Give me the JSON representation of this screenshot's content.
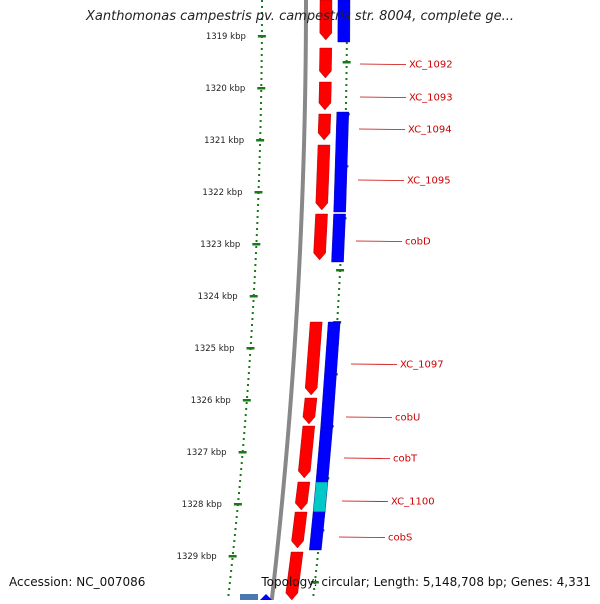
{
  "title": "Xanthomonas campestris pv. campestris str. 8004, complete ge...",
  "footer": {
    "accession": "Accession: NC_007086",
    "summary": "Topology: circular; Length: 5,148,708 bp; Genes: 4,331"
  },
  "colors": {
    "forward_gene": "#ff0000",
    "reverse_gene": "#0000ff",
    "highlight_gene": "#00c8c8",
    "backbone": "#888888",
    "tick": "#1a7a1a",
    "label": "#cc0000"
  },
  "ticks": [
    {
      "label": "1319 kbp"
    },
    {
      "label": "1320 kbp"
    },
    {
      "label": "1321 kbp"
    },
    {
      "label": "1322 kbp"
    },
    {
      "label": "1323 kbp"
    },
    {
      "label": "1324 kbp"
    },
    {
      "label": "1325 kbp"
    },
    {
      "label": "1326 kbp"
    },
    {
      "label": "1327 kbp"
    },
    {
      "label": "1328 kbp"
    },
    {
      "label": "1329 kbp"
    }
  ],
  "gene_labels": [
    {
      "text": "XC_1092"
    },
    {
      "text": "XC_1093"
    },
    {
      "text": "XC_1094"
    },
    {
      "text": "XC_1095"
    },
    {
      "text": "cobD"
    },
    {
      "text": "XC_1097"
    },
    {
      "text": "cobU"
    },
    {
      "text": "cobT"
    },
    {
      "text": "XC_1100"
    },
    {
      "text": "cobS"
    }
  ]
}
